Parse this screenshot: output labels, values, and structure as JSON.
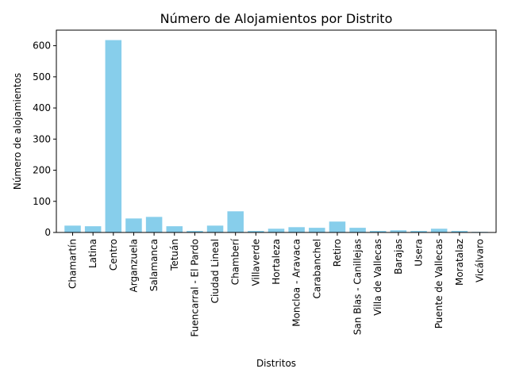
{
  "chart_data": {
    "type": "bar",
    "title": "Número de Alojamientos por Distrito",
    "xlabel": "Distritos",
    "ylabel": "Número de alojamientos",
    "ylim": [
      0,
      650
    ],
    "yticks": [
      0,
      100,
      200,
      300,
      400,
      500,
      600
    ],
    "grid": false,
    "bar_color": "#87ceeb",
    "categories": [
      "Chamartín",
      "Latina",
      "Centro",
      "Arganzuela",
      "Salamanca",
      "Tetuán",
      "Fuencarral - El Pardo",
      "Ciudad Lineal",
      "Chamberí",
      "Villaverde",
      "Hortaleza",
      "Moncloa - Aravaca",
      "Carabanchel",
      "Retiro",
      "San Blas - Canillejas",
      "Villa de Vallecas",
      "Barajas",
      "Usera",
      "Puente de Vallecas",
      "Moratalaz",
      "Vicálvaro"
    ],
    "values": [
      22,
      20,
      618,
      45,
      50,
      20,
      5,
      22,
      68,
      5,
      12,
      17,
      15,
      35,
      15,
      5,
      7,
      5,
      12,
      5,
      2
    ]
  }
}
